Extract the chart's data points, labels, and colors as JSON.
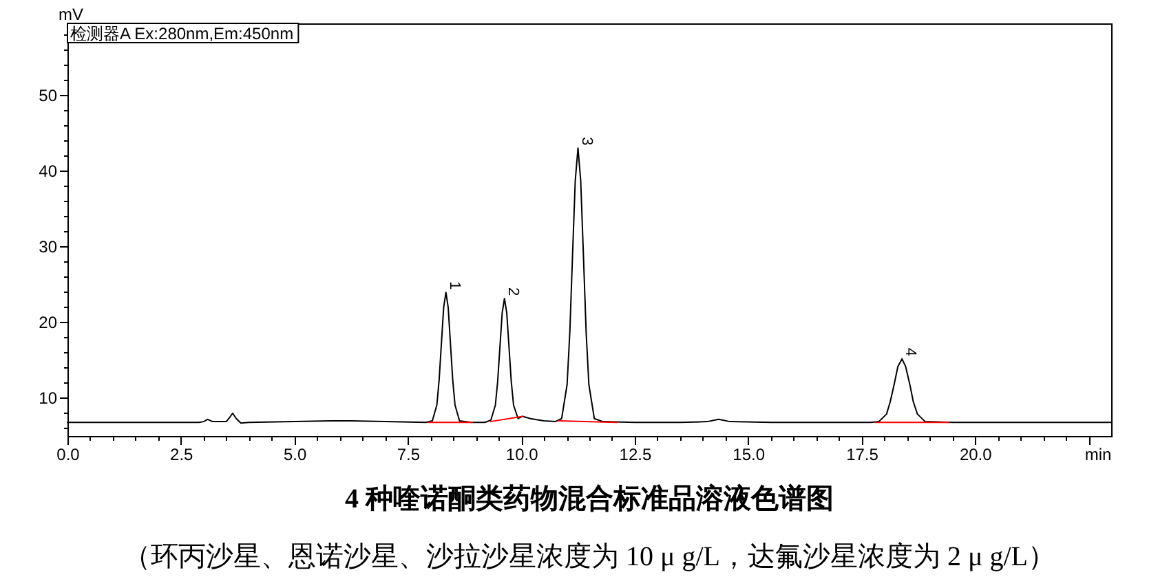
{
  "chart_data": {
    "type": "line",
    "title": "4 种喹诺酮类药物混合标准品溶液色谱图",
    "subtitle": "（环丙沙星、恩诺沙星、沙拉沙星浓度为 10 μ g/L，达氟沙星浓度为 2 μ g/L）",
    "xlabel": "min",
    "ylabel": "mV",
    "annotations": [
      "检测器A Ex:280nm,Em:450nm",
      {
        "text": "1",
        "x": 8.34,
        "y": 23.9
      },
      {
        "text": "2",
        "x": 9.63,
        "y": 23.1
      },
      {
        "text": "3",
        "x": 11.25,
        "y": 43.0
      },
      {
        "text": "4",
        "x": 18.39,
        "y": 15.1
      }
    ],
    "series": [
      {
        "color": "#000000",
        "x": [
          0,
          1,
          2,
          2.9,
          3.0,
          3.09,
          3.2,
          3.5,
          3.58,
          3.64,
          3.72,
          3.82,
          4,
          5,
          5.8,
          6.2,
          7,
          7.9,
          8.04,
          8.14,
          8.19,
          8.24,
          8.29,
          8.34,
          8.39,
          8.44,
          8.49,
          8.54,
          8.64,
          8.9,
          9.2,
          9.33,
          9.43,
          9.48,
          9.53,
          9.58,
          9.63,
          9.68,
          9.73,
          9.78,
          9.83,
          9.93,
          10.03,
          10.2,
          10.5,
          10.75,
          10.89,
          11.01,
          11.07,
          11.13,
          11.19,
          11.25,
          11.31,
          11.37,
          11.43,
          11.49,
          11.61,
          11.8,
          12.5,
          13.5,
          14.1,
          14.35,
          14.6,
          15.5,
          17,
          17.7,
          17.88,
          18.05,
          18.13,
          18.22,
          18.3,
          18.39,
          18.47,
          18.56,
          18.64,
          18.73,
          18.9,
          19.5,
          21,
          22,
          23
        ],
        "values": [
          6.7,
          6.7,
          6.7,
          6.7,
          6.8,
          7.1,
          6.8,
          6.8,
          7.4,
          7.9,
          7.2,
          6.6,
          6.7,
          6.8,
          6.9,
          6.9,
          6.8,
          6.7,
          6.9,
          9.0,
          12.3,
          17.1,
          21.9,
          23.9,
          21.9,
          17.1,
          12.3,
          9.0,
          6.9,
          6.7,
          6.7,
          7.0,
          9.0,
          12.1,
          16.7,
          21.2,
          23.1,
          21.2,
          16.7,
          12.1,
          9.0,
          7.2,
          7.5,
          7.2,
          6.9,
          6.8,
          7.2,
          11.7,
          18.6,
          28.8,
          38.7,
          43.0,
          38.7,
          28.8,
          18.6,
          11.7,
          7.2,
          6.8,
          6.7,
          6.7,
          6.8,
          7.1,
          6.8,
          6.7,
          6.7,
          6.7,
          6.8,
          7.8,
          9.4,
          11.8,
          14.1,
          15.1,
          14.1,
          11.8,
          9.4,
          7.8,
          6.8,
          6.7,
          6.7,
          6.7,
          6.7
        ]
      },
      {
        "type": "line",
        "color": "#ff0000",
        "x": [
          7.96,
          8.92
        ],
        "values": [
          6.7,
          6.7
        ]
      },
      {
        "type": "line",
        "color": "#ff0000",
        "x": [
          9.32,
          10.03
        ],
        "values": [
          6.8,
          7.5
        ]
      },
      {
        "type": "line",
        "color": "#ff0000",
        "x": [
          10.82,
          12.1
        ],
        "values": [
          6.9,
          6.7
        ]
      },
      {
        "type": "line",
        "color": "#ff0000",
        "x": [
          17.81,
          19.42
        ],
        "values": [
          6.7,
          6.7
        ]
      }
    ],
    "xlim": [
      0,
      23
    ],
    "xticks": [
      {
        "value": 0,
        "label": "0.0"
      },
      {
        "value": 0.5,
        "label": null
      },
      {
        "value": 1,
        "label": null
      },
      {
        "value": 1.5,
        "label": null
      },
      {
        "value": 2,
        "label": null
      },
      2.5,
      {
        "value": 3,
        "label": null
      },
      {
        "value": 3.5,
        "label": null
      },
      {
        "value": 4,
        "label": null
      },
      {
        "value": 4.5,
        "label": null
      },
      {
        "value": 5,
        "label": "5.0"
      },
      {
        "value": 5.5,
        "label": null
      },
      {
        "value": 6,
        "label": null
      },
      {
        "value": 6.5,
        "label": null
      },
      {
        "value": 7,
        "label": null
      },
      7.5,
      {
        "value": 8,
        "label": null
      },
      {
        "value": 8.5,
        "label": null
      },
      {
        "value": 9,
        "label": null
      },
      {
        "value": 9.5,
        "label": null
      },
      {
        "value": 10,
        "label": "10.0"
      },
      {
        "value": 10.5,
        "label": null
      },
      {
        "value": 11,
        "label": null
      },
      {
        "value": 11.5,
        "label": null
      },
      {
        "value": 12,
        "label": null
      },
      12.5,
      {
        "value": 13,
        "label": null
      },
      {
        "value": 13.5,
        "label": null
      },
      {
        "value": 14,
        "label": null
      },
      {
        "value": 14.5,
        "label": null
      },
      {
        "value": 15,
        "label": "15.0"
      },
      {
        "value": 15.5,
        "label": null
      },
      {
        "value": 16,
        "label": null
      },
      {
        "value": 16.5,
        "label": null
      },
      {
        "value": 17,
        "label": null
      },
      17.5,
      {
        "value": 18,
        "label": null
      },
      {
        "value": 18.5,
        "label": null
      },
      {
        "value": 19,
        "label": null
      },
      {
        "value": 19.5,
        "label": null
      },
      {
        "value": 20,
        "label": "20.0"
      },
      {
        "value": 20.5,
        "label": null
      },
      {
        "value": 21,
        "label": null
      },
      {
        "value": 21.5,
        "label": null
      },
      {
        "value": 22,
        "label": null
      },
      {
        "value": 22.5,
        "label": null
      }
    ],
    "ylim": [
      4.9,
      59.5
    ],
    "yticks": [
      {
        "value": 6,
        "label": null
      },
      {
        "value": 8,
        "label": null
      },
      10,
      {
        "value": 12,
        "label": null
      },
      {
        "value": 14,
        "label": null
      },
      {
        "value": 16,
        "label": null
      },
      {
        "value": 18,
        "label": null
      },
      20,
      {
        "value": 22,
        "label": null
      },
      {
        "value": 24,
        "label": null
      },
      {
        "value": 26,
        "label": null
      },
      {
        "value": 28,
        "label": null
      },
      30,
      {
        "value": 32,
        "label": null
      },
      {
        "value": 34,
        "label": null
      },
      {
        "value": 36,
        "label": null
      },
      {
        "value": 38,
        "label": null
      },
      40,
      {
        "value": 42,
        "label": null
      },
      {
        "value": 44,
        "label": null
      },
      {
        "value": 46,
        "label": null
      },
      {
        "value": 48,
        "label": null
      },
      50,
      {
        "value": 52,
        "label": null
      },
      {
        "value": 54,
        "label": null
      },
      {
        "value": 56,
        "label": null
      },
      {
        "value": 58,
        "label": null
      }
    ],
    "grid": false
  }
}
